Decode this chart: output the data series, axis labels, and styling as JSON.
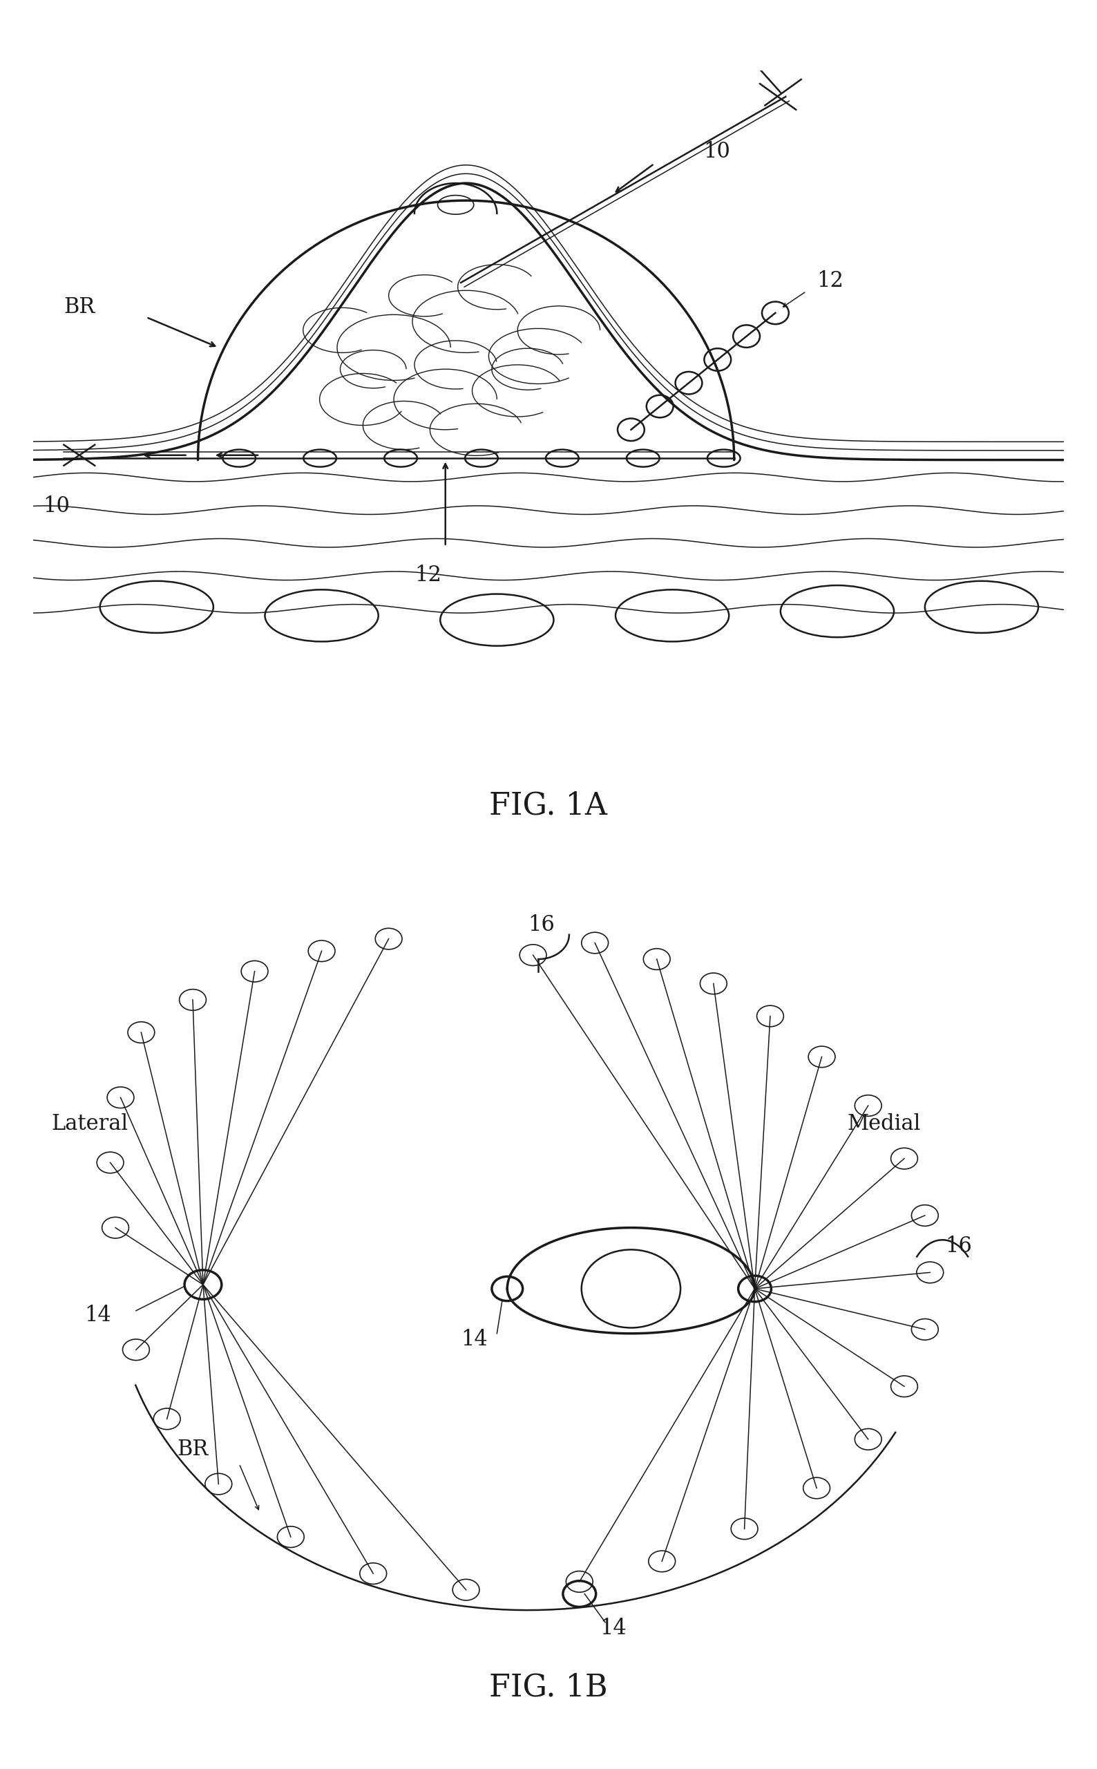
{
  "background_color": "#ffffff",
  "line_color": "#1a1a1a",
  "fig1a_title": "FIG. 1A",
  "fig1b_title": "FIG. 1B",
  "label_10": "10",
  "label_12": "12",
  "label_14": "14",
  "label_16": "16",
  "label_BR": "BR",
  "label_Lateral": "Lateral",
  "label_Medial": "Medial",
  "font_size_label": 22,
  "font_size_title": 32,
  "lw_main": 1.8,
  "lw_thick": 2.5,
  "lw_thin": 1.1
}
